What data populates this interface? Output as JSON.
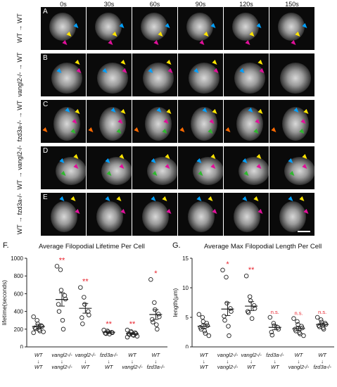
{
  "figure": {
    "time_labels": [
      "0s",
      "30s",
      "60s",
      "90s",
      "120s",
      "150s"
    ],
    "rows": [
      {
        "letter": "A",
        "label": "WT → WT"
      },
      {
        "letter": "B",
        "label": "vangl2-/- → WT"
      },
      {
        "letter": "C",
        "label": "fzd3a-/- → WT"
      },
      {
        "letter": "D",
        "label": "WT → vangl2-/-"
      },
      {
        "letter": "E",
        "label": "WT → fzd3a-/-"
      }
    ],
    "arrow_colors": {
      "cyan": "#00a0ff",
      "yellow": "#ffe400",
      "magenta": "#e0109a",
      "green": "#2eb82e",
      "orange": "#ff6a00"
    }
  },
  "chart_data": [
    {
      "panel_letter": "F.",
      "type": "scatter",
      "title": "Average Filopodial Lifetime Per Cell",
      "xlabel": "",
      "ylabel": "lifetime(seconds)",
      "ylim": [
        0,
        1000
      ],
      "yticks": [
        0,
        200,
        400,
        600,
        800,
        1000
      ],
      "grid": false,
      "categories": [
        {
          "top": "WT",
          "bottom": "WT"
        },
        {
          "top": "vangl2-/-",
          "bottom": "vangl2-/-"
        },
        {
          "top": "vangl2-/-",
          "bottom": "WT"
        },
        {
          "top": "fzd3a-/-",
          "bottom": "WT"
        },
        {
          "top": "WT",
          "bottom": "vangl2-/-"
        },
        {
          "top": "WT",
          "bottom": "fzd3a-/-"
        }
      ],
      "points": [
        [
          340,
          300,
          260,
          240,
          230,
          215,
          205,
          195,
          180,
          170,
          160
        ],
        [
          910,
          870,
          640,
          580,
          540,
          480,
          400,
          300,
          200
        ],
        [
          670,
          560,
          480,
          400,
          360,
          330,
          260
        ],
        [
          190,
          180,
          170,
          165,
          160,
          155,
          150,
          145
        ],
        [
          190,
          175,
          165,
          160,
          150,
          145,
          140,
          135,
          130,
          120,
          110
        ],
        [
          760,
          500,
          420,
          370,
          340,
          310,
          280,
          250,
          200
        ]
      ],
      "means": [
        230,
        535,
        435,
        165,
        150,
        365
      ],
      "sem": [
        25,
        75,
        55,
        10,
        10,
        55
      ],
      "significance": [
        "",
        "**",
        "**",
        "**",
        "**",
        "*"
      ],
      "significance_color": "#e8212b"
    },
    {
      "panel_letter": "G.",
      "type": "scatter",
      "title": "Average Max Filopodial Length Per Cell",
      "xlabel": "",
      "ylabel": "length(μm)",
      "ylim": [
        0,
        15
      ],
      "yticks": [
        0,
        5,
        10,
        15
      ],
      "grid": false,
      "categories": [
        {
          "top": "WT",
          "bottom": "WT"
        },
        {
          "top": "vangl2-/-",
          "bottom": "vangl2-/-"
        },
        {
          "top": "vangl2-/-",
          "bottom": "WT"
        },
        {
          "top": "fzd3a-/-",
          "bottom": "WT"
        },
        {
          "top": "WT",
          "bottom": "vangl2-/-"
        },
        {
          "top": "WT",
          "bottom": "fzd3a-/-"
        }
      ],
      "points": [
        [
          5.5,
          5.0,
          4.3,
          4.0,
          3.6,
          3.3,
          3.0,
          2.7,
          2.3,
          1.9
        ],
        [
          13.0,
          11.8,
          7.4,
          6.5,
          6.0,
          5.2,
          4.5,
          3.5,
          1.9
        ],
        [
          12.0,
          8.5,
          7.8,
          7.0,
          6.5,
          6.0,
          5.8,
          4.8
        ],
        [
          5.0,
          4.0,
          3.6,
          3.3,
          3.0,
          2.5,
          2.0
        ],
        [
          4.8,
          4.3,
          3.8,
          3.5,
          3.2,
          3.0,
          2.7,
          2.4,
          2.2,
          1.9
        ],
        [
          5.0,
          4.6,
          4.2,
          4.0,
          3.8,
          3.6,
          3.4,
          3.2,
          3.0
        ]
      ],
      "means": [
        3.5,
        6.4,
        6.9,
        3.3,
        3.1,
        3.8
      ],
      "sem": [
        0.35,
        1.1,
        0.75,
        0.4,
        0.3,
        0.25
      ],
      "significance": [
        "",
        "*",
        "**",
        "n.s.",
        "n.s.",
        "n.s."
      ],
      "significance_color": "#e8212b"
    }
  ]
}
